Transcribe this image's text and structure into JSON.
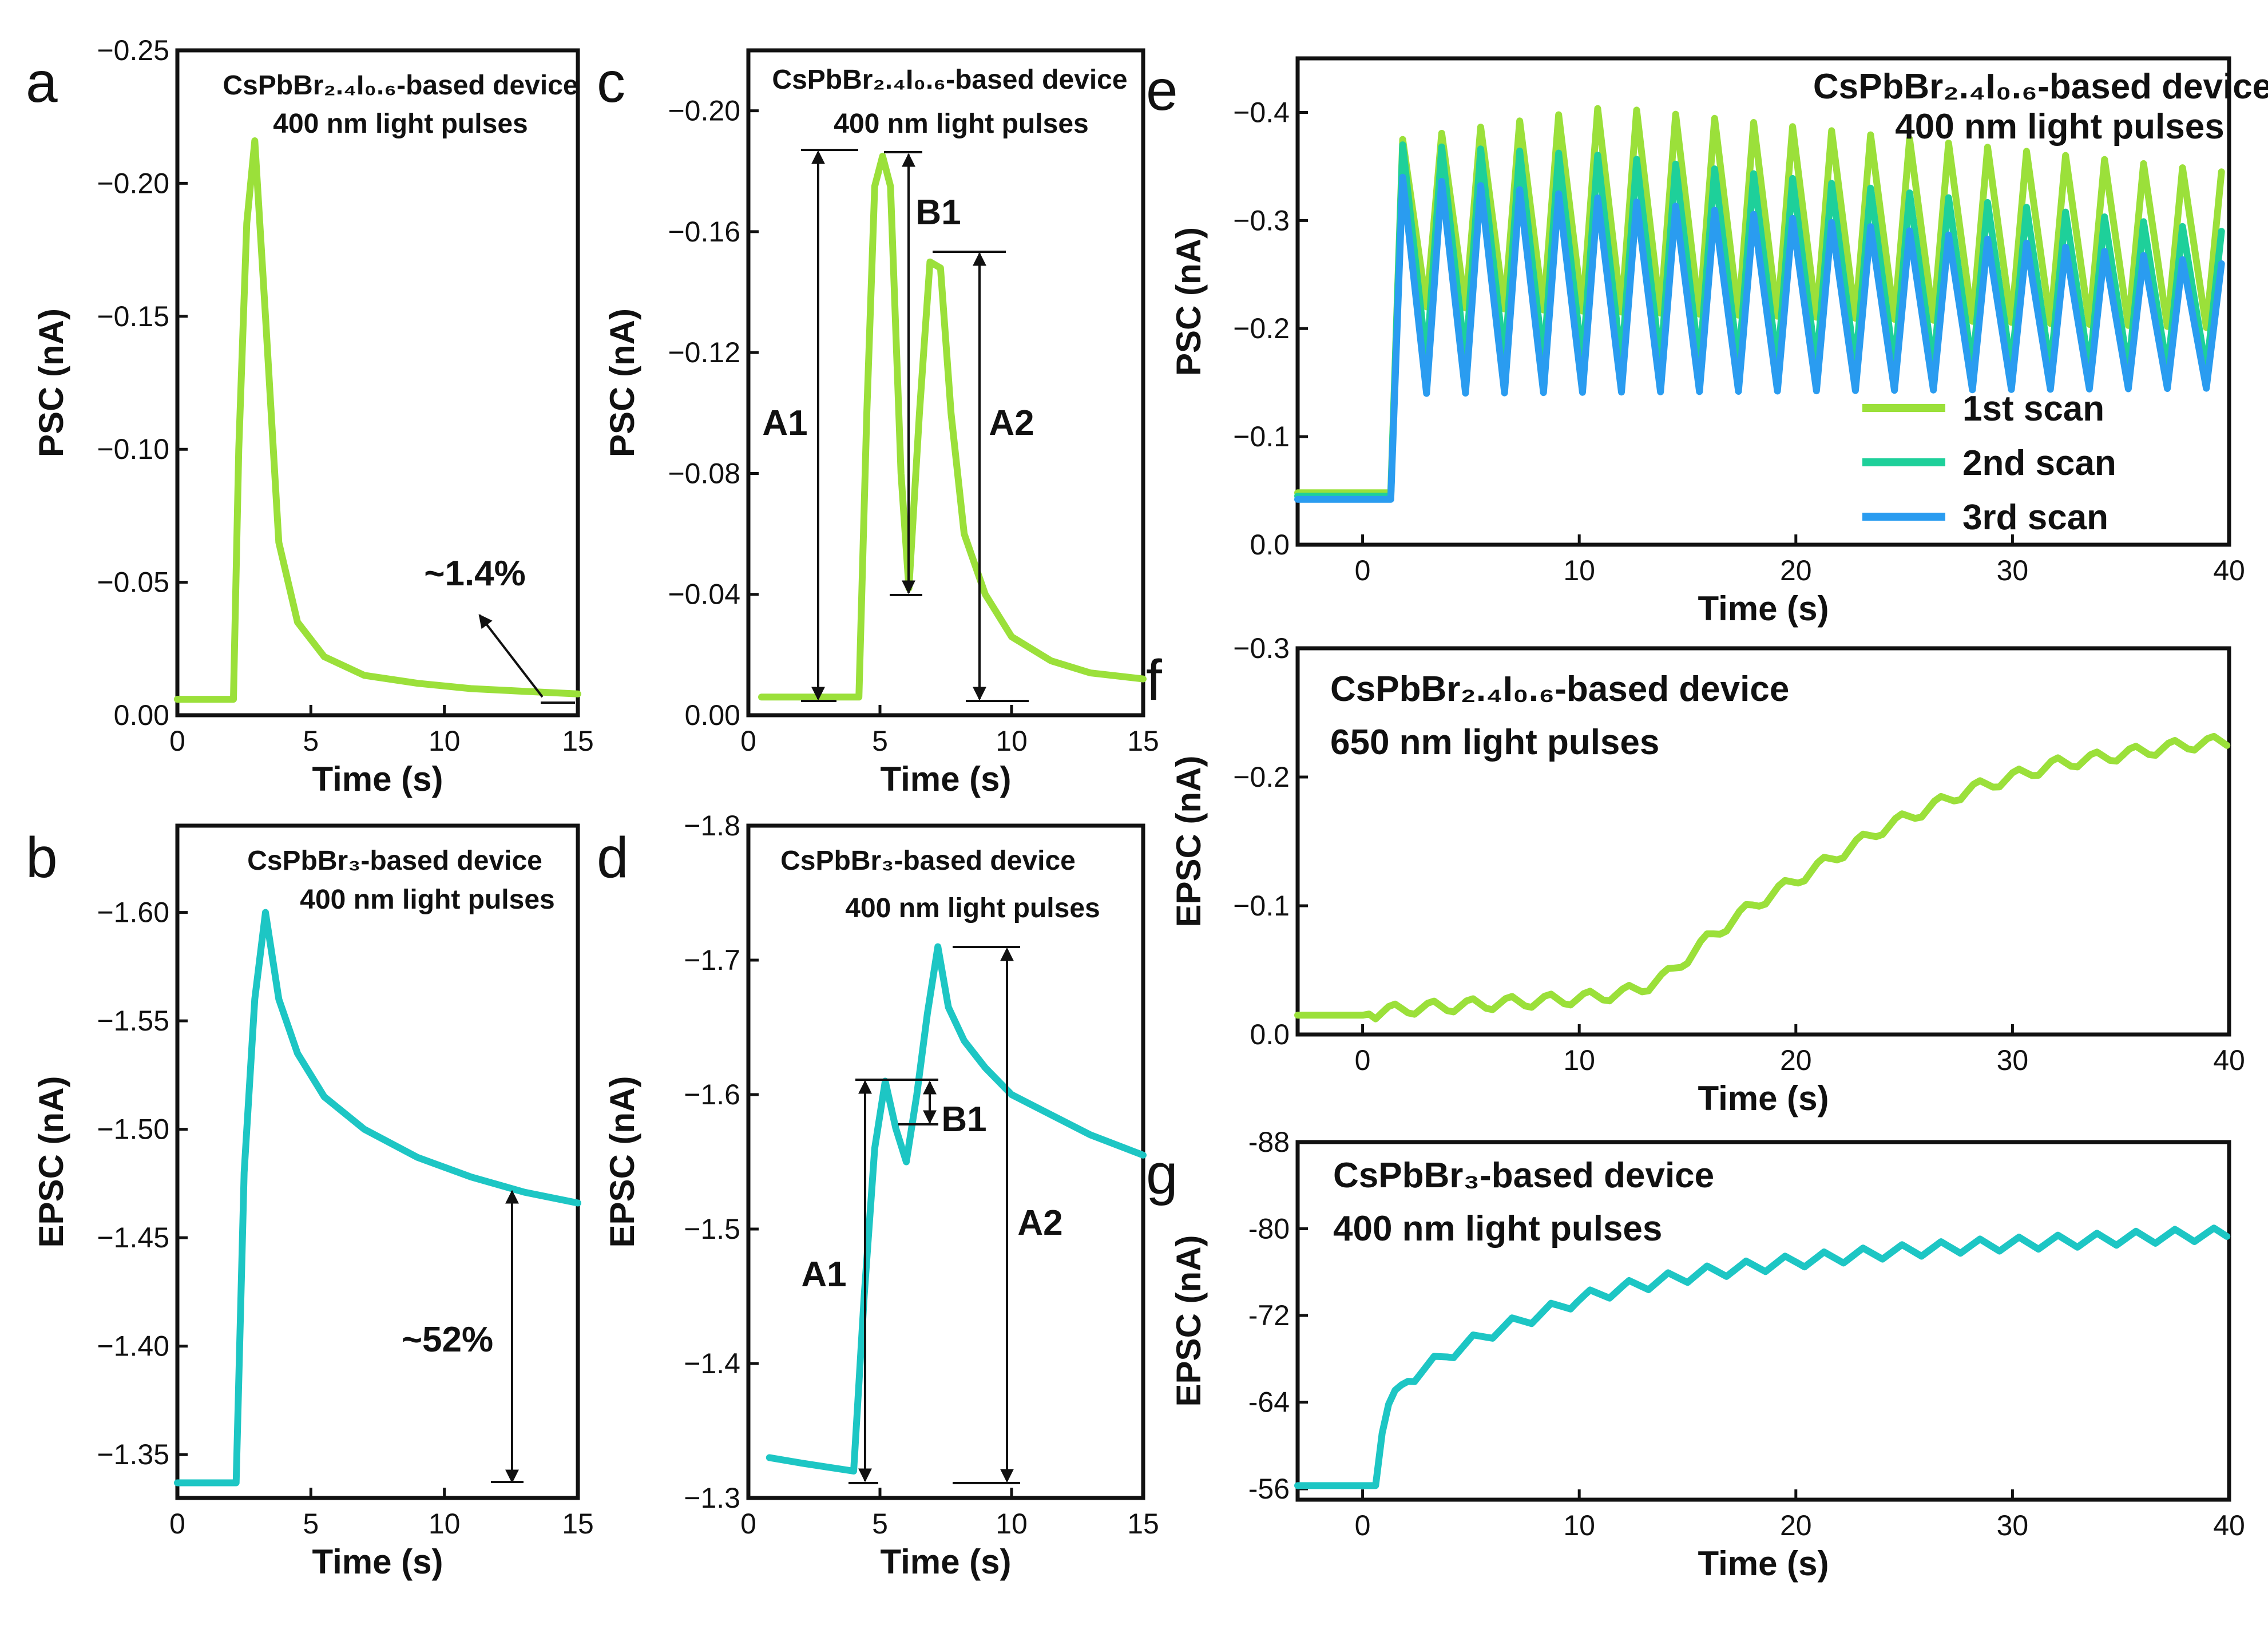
{
  "figure_caption": "",
  "colors": {
    "green": "#9be03a",
    "teal": "#1dc6c4",
    "mint": "#1ed09a",
    "blue": "#2a9cf0",
    "axis": "#111111"
  },
  "chart_data": [
    {
      "id": "a",
      "letter": "a",
      "type": "line",
      "title": "",
      "xlabel": "Time (s)",
      "ylabel": "PSC (nA)",
      "xlim": [
        0,
        15
      ],
      "ylim": [
        0,
        -0.25
      ],
      "x_ticks": [
        0,
        5,
        10,
        15
      ],
      "x_tick_labels": [
        "0",
        "5",
        "10",
        "15"
      ],
      "y_ticks": [
        0,
        -0.05,
        -0.1,
        -0.15,
        -0.2,
        -0.25
      ],
      "y_tick_labels": [
        "0.00",
        "−0.05",
        "−0.10",
        "−0.15",
        "−0.20",
        "−0.25"
      ],
      "labels": [
        "CsPbBr₂.₄I₀.₆-based device",
        "400 nm light pulses"
      ],
      "annotations": [
        "~1.4%"
      ],
      "series": [
        {
          "name": "400 nm",
          "color": "#9be03a",
          "x": [
            0,
            2.1,
            2.3,
            2.6,
            2.9,
            3.3,
            3.8,
            4.5,
            5.5,
            7,
            9,
            11,
            13,
            15
          ],
          "y": [
            -0.006,
            -0.006,
            -0.1,
            -0.185,
            -0.216,
            -0.15,
            -0.065,
            -0.035,
            -0.022,
            -0.015,
            -0.012,
            -0.01,
            -0.009,
            -0.008
          ]
        }
      ]
    },
    {
      "id": "b",
      "letter": "b",
      "type": "line",
      "title": "",
      "xlabel": "Time (s)",
      "ylabel": "EPSC (nA)",
      "xlim": [
        0,
        15
      ],
      "ylim": [
        -1.33,
        -1.64
      ],
      "x_ticks": [
        0,
        5,
        10,
        15
      ],
      "x_tick_labels": [
        "0",
        "5",
        "10",
        "15"
      ],
      "y_ticks": [
        -1.35,
        -1.4,
        -1.45,
        -1.5,
        -1.55,
        -1.6
      ],
      "y_tick_labels": [
        "−1.35",
        "−1.40",
        "−1.45",
        "−1.50",
        "−1.55",
        "−1.60"
      ],
      "labels": [
        "CsPbBr₃-based device",
        "400 nm light pulses"
      ],
      "annotations": [
        "~52%"
      ],
      "series": [
        {
          "name": "400 nm",
          "color": "#1dc6c4",
          "x": [
            0,
            2.2,
            2.5,
            2.9,
            3.3,
            3.8,
            4.5,
            5.5,
            7,
            9,
            11,
            13,
            15
          ],
          "y": [
            -1.337,
            -1.337,
            -1.48,
            -1.56,
            -1.6,
            -1.56,
            -1.535,
            -1.515,
            -1.5,
            -1.487,
            -1.478,
            -1.471,
            -1.466
          ]
        }
      ]
    },
    {
      "id": "c",
      "letter": "c",
      "type": "line",
      "title": "",
      "xlabel": "Time (s)",
      "ylabel": "PSC (nA)",
      "xlim": [
        0,
        15
      ],
      "ylim": [
        0,
        -0.22
      ],
      "x_ticks": [
        0,
        5,
        10,
        15
      ],
      "x_tick_labels": [
        "0",
        "5",
        "10",
        "15"
      ],
      "y_ticks": [
        0,
        -0.04,
        -0.08,
        -0.12,
        -0.16,
        -0.2
      ],
      "y_tick_labels": [
        "0.00",
        "−0.04",
        "−0.08",
        "−0.12",
        "−0.16",
        "−0.20"
      ],
      "labels": [
        "CsPbBr₂.₄I₀.₆-based device",
        "400 nm light pulses"
      ],
      "annotations": [
        "A1",
        "B1",
        "A2"
      ],
      "series": [
        {
          "name": "400 nm",
          "color": "#9be03a",
          "x": [
            0.5,
            2,
            4.2,
            4.5,
            4.8,
            5.1,
            5.4,
            5.8,
            6.1,
            6.5,
            6.9,
            7.3,
            7.7,
            8.2,
            9,
            10,
            11.5,
            13,
            15
          ],
          "y": [
            -0.006,
            -0.006,
            -0.006,
            -0.1,
            -0.175,
            -0.185,
            -0.175,
            -0.08,
            -0.042,
            -0.1,
            -0.15,
            -0.148,
            -0.1,
            -0.06,
            -0.04,
            -0.026,
            -0.018,
            -0.014,
            -0.012
          ]
        }
      ]
    },
    {
      "id": "d",
      "letter": "d",
      "type": "line",
      "title": "",
      "xlabel": "Time (s)",
      "ylabel": "EPSC (nA)",
      "xlim": [
        0,
        15
      ],
      "ylim": [
        -1.3,
        -1.8
      ],
      "x_ticks": [
        0,
        5,
        10,
        15
      ],
      "x_tick_labels": [
        "0",
        "5",
        "10",
        "15"
      ],
      "y_ticks": [
        -1.3,
        -1.4,
        -1.5,
        -1.6,
        -1.7,
        -1.8
      ],
      "y_tick_labels": [
        "−1.3",
        "−1.4",
        "−1.5",
        "−1.6",
        "−1.7",
        "−1.8"
      ],
      "labels": [
        "CsPbBr₃-based device",
        "400 nm light pulses"
      ],
      "annotations": [
        "A1",
        "B1",
        "A2"
      ],
      "series": [
        {
          "name": "400 nm",
          "color": "#1dc6c4",
          "x": [
            0.8,
            2,
            3,
            4,
            4.4,
            4.8,
            5.2,
            5.6,
            6,
            6.4,
            6.8,
            7.2,
            7.6,
            8.2,
            9,
            10,
            11.5,
            13,
            15
          ],
          "y": [
            -1.33,
            -1.326,
            -1.323,
            -1.32,
            -1.45,
            -1.56,
            -1.61,
            -1.575,
            -1.55,
            -1.6,
            -1.66,
            -1.71,
            -1.665,
            -1.64,
            -1.62,
            -1.6,
            -1.585,
            -1.57,
            -1.555
          ]
        }
      ]
    },
    {
      "id": "e",
      "letter": "e",
      "type": "line",
      "title": "",
      "xlabel": "Time (s)",
      "ylabel": "PSC (nA)",
      "xlim": [
        -3,
        40
      ],
      "ylim": [
        0,
        -0.45
      ],
      "x_ticks": [
        0,
        10,
        20,
        30,
        40
      ],
      "x_tick_labels": [
        "0",
        "10",
        "20",
        "30",
        "40"
      ],
      "y_ticks": [
        0,
        -0.1,
        -0.2,
        -0.3,
        -0.4
      ],
      "y_tick_labels": [
        "0.0",
        "−0.1",
        "−0.2",
        "−0.3",
        "−0.4"
      ],
      "labels": [
        "CsPbBr₂.₄I₀.₆-based device",
        "400  nm light pulses"
      ],
      "legend": [
        "1st scan",
        "2nd scan",
        "3rd scan"
      ],
      "legend_position": "bottom-right",
      "series": [
        {
          "name": "1st scan",
          "color": "#9be03a",
          "start": -3,
          "onset": 1.5,
          "base": -0.048,
          "plateau": -0.3,
          "period": 1.8,
          "peak_first": -0.375,
          "peak_max": -0.405,
          "peak_last": -0.345,
          "valley_first": -0.22,
          "valley_last": -0.2
        },
        {
          "name": "2nd scan",
          "color": "#1ed09a",
          "start": -3,
          "onset": 1.5,
          "base": -0.045,
          "plateau": -0.28,
          "period": 1.8,
          "peak_first": -0.37,
          "peak_max": -0.36,
          "peak_last": -0.29,
          "valley_first": -0.17,
          "valley_last": -0.16
        },
        {
          "name": "3rd scan",
          "color": "#2a9cf0",
          "start": -3,
          "onset": 1.5,
          "base": -0.042,
          "plateau": -0.26,
          "period": 1.8,
          "peak_first": -0.34,
          "peak_max": -0.32,
          "peak_last": -0.26,
          "valley_first": -0.14,
          "valley_last": -0.145
        }
      ]
    },
    {
      "id": "f",
      "letter": "f",
      "type": "line",
      "title": "",
      "xlabel": "Time (s)",
      "ylabel": "EPSC (nA)",
      "xlim": [
        -3,
        40
      ],
      "ylim": [
        0,
        -0.3
      ],
      "x_ticks": [
        0,
        10,
        20,
        30,
        40
      ],
      "x_tick_labels": [
        "0",
        "10",
        "20",
        "30",
        "40"
      ],
      "y_ticks": [
        0,
        -0.1,
        -0.2,
        -0.3
      ],
      "y_tick_labels": [
        "0.0",
        "−0.1",
        "−0.2",
        "−0.3"
      ],
      "labels": [
        "CsPbBr₂.₄I₀.₆-based device",
        "650 nm light pulses"
      ],
      "series": [
        {
          "name": "650 nm",
          "color": "#9be03a",
          "x": [
            -3,
            0,
            1,
            2,
            4,
            6,
            8,
            10,
            12,
            13,
            14,
            15,
            16,
            18,
            20,
            22,
            24,
            26,
            28,
            30,
            32,
            34,
            36,
            38,
            40
          ],
          "y": [
            -0.015,
            -0.015,
            -0.018,
            -0.02,
            -0.022,
            -0.024,
            -0.026,
            -0.028,
            -0.032,
            -0.037,
            -0.045,
            -0.06,
            -0.075,
            -0.1,
            -0.12,
            -0.14,
            -0.16,
            -0.175,
            -0.19,
            -0.2,
            -0.21,
            -0.215,
            -0.22,
            -0.225,
            -0.228
          ],
          "ripple": 0.012,
          "period": 1.8
        }
      ]
    },
    {
      "id": "g",
      "letter": "g",
      "type": "line",
      "title": "",
      "xlabel": "Time (s)",
      "ylabel": "EPSC (nA)",
      "xlim": [
        -3,
        40
      ],
      "ylim": [
        -55,
        -88
      ],
      "x_ticks": [
        0,
        10,
        20,
        30,
        40
      ],
      "x_tick_labels": [
        "0",
        "10",
        "20",
        "30",
        "40"
      ],
      "y_ticks": [
        -56,
        -64,
        -72,
        -80,
        -88
      ],
      "y_tick_labels": [
        "-56",
        "-64",
        "-72",
        "-80",
        "-88"
      ],
      "labels": [
        "CsPbBr₃-based device",
        "400 nm light pulses"
      ],
      "series": [
        {
          "name": "400 nm",
          "color": "#1dc6c4",
          "x": [
            -3,
            0,
            0.6,
            1,
            2,
            4,
            6,
            8,
            10,
            12,
            14,
            16,
            18,
            20,
            22,
            24,
            26,
            28,
            30,
            32,
            34,
            36,
            38,
            40
          ],
          "y": [
            -56.3,
            -56.3,
            -56.3,
            -63,
            -66,
            -68.5,
            -70.5,
            -72,
            -73.5,
            -74.5,
            -75.3,
            -76,
            -76.5,
            -77,
            -77.4,
            -77.8,
            -78.1,
            -78.4,
            -78.6,
            -78.8,
            -79,
            -79.2,
            -79.4,
            -79.5
          ],
          "ripple": 1.2,
          "period": 1.8
        }
      ]
    }
  ]
}
